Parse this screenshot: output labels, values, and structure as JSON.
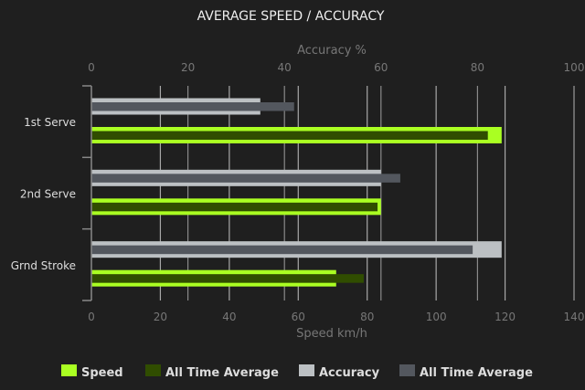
{
  "chart_data": {
    "type": "bar",
    "orientation": "horizontal",
    "title": "AVERAGE SPEED / ACCURACY",
    "categories": [
      "1st Serve",
      "2nd Serve",
      "Grnd Stroke"
    ],
    "speed_axis": {
      "label": "Speed km/h",
      "range": [
        0,
        140
      ],
      "ticks": [
        0,
        20,
        40,
        60,
        80,
        100,
        120,
        140
      ],
      "position": "bottom"
    },
    "accuracy_axis": {
      "label": "Accuracy %",
      "range": [
        0,
        100
      ],
      "ticks": [
        0,
        20,
        40,
        60,
        80,
        100
      ],
      "position": "top"
    },
    "grid": true,
    "legend_position": "bottom",
    "series": [
      {
        "name": "Speed",
        "axis": "speed",
        "color": "#aaff22",
        "values": [
          119,
          84,
          71
        ]
      },
      {
        "name": "All Time Average",
        "axis": "speed",
        "color": "#304d00",
        "values": [
          115,
          83,
          79
        ]
      },
      {
        "name": "Accuracy",
        "axis": "accuracy",
        "color": "#bcc0c3",
        "values": [
          35,
          60,
          85
        ]
      },
      {
        "name": "All Time Average",
        "axis": "accuracy",
        "color": "#53575e",
        "values": [
          42,
          64,
          79
        ]
      }
    ]
  }
}
